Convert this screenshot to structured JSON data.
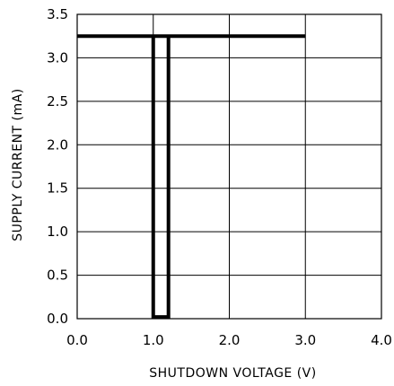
{
  "chart_data": {
    "type": "line",
    "title": "",
    "xlabel": "SHUTDOWN VOLTAGE (V)",
    "ylabel": "SUPPLY CURRENT (mA)",
    "xlim": [
      0,
      4
    ],
    "ylim": [
      0,
      3.5
    ],
    "x_ticks": [
      0,
      1,
      2,
      3,
      4
    ],
    "y_ticks": [
      0,
      0.5,
      1,
      1.5,
      2,
      2.5,
      3,
      3.5
    ],
    "x_tick_labels": [
      "0.0",
      "1.0",
      "2.0",
      "3.0",
      "4.0"
    ],
    "y_tick_labels": [
      "0.0",
      "0.5",
      "1.0",
      "1.5",
      "2.0",
      "2.5",
      "3.0",
      "3.5"
    ],
    "grid": true,
    "series": [
      {
        "color": "#000000",
        "x": [
          0,
          1.2,
          1.2,
          1.0,
          1.0,
          3.0
        ],
        "y": [
          3.25,
          3.25,
          0.02,
          0.02,
          3.25,
          3.25
        ],
        "segment_note_x": null
      }
    ]
  }
}
